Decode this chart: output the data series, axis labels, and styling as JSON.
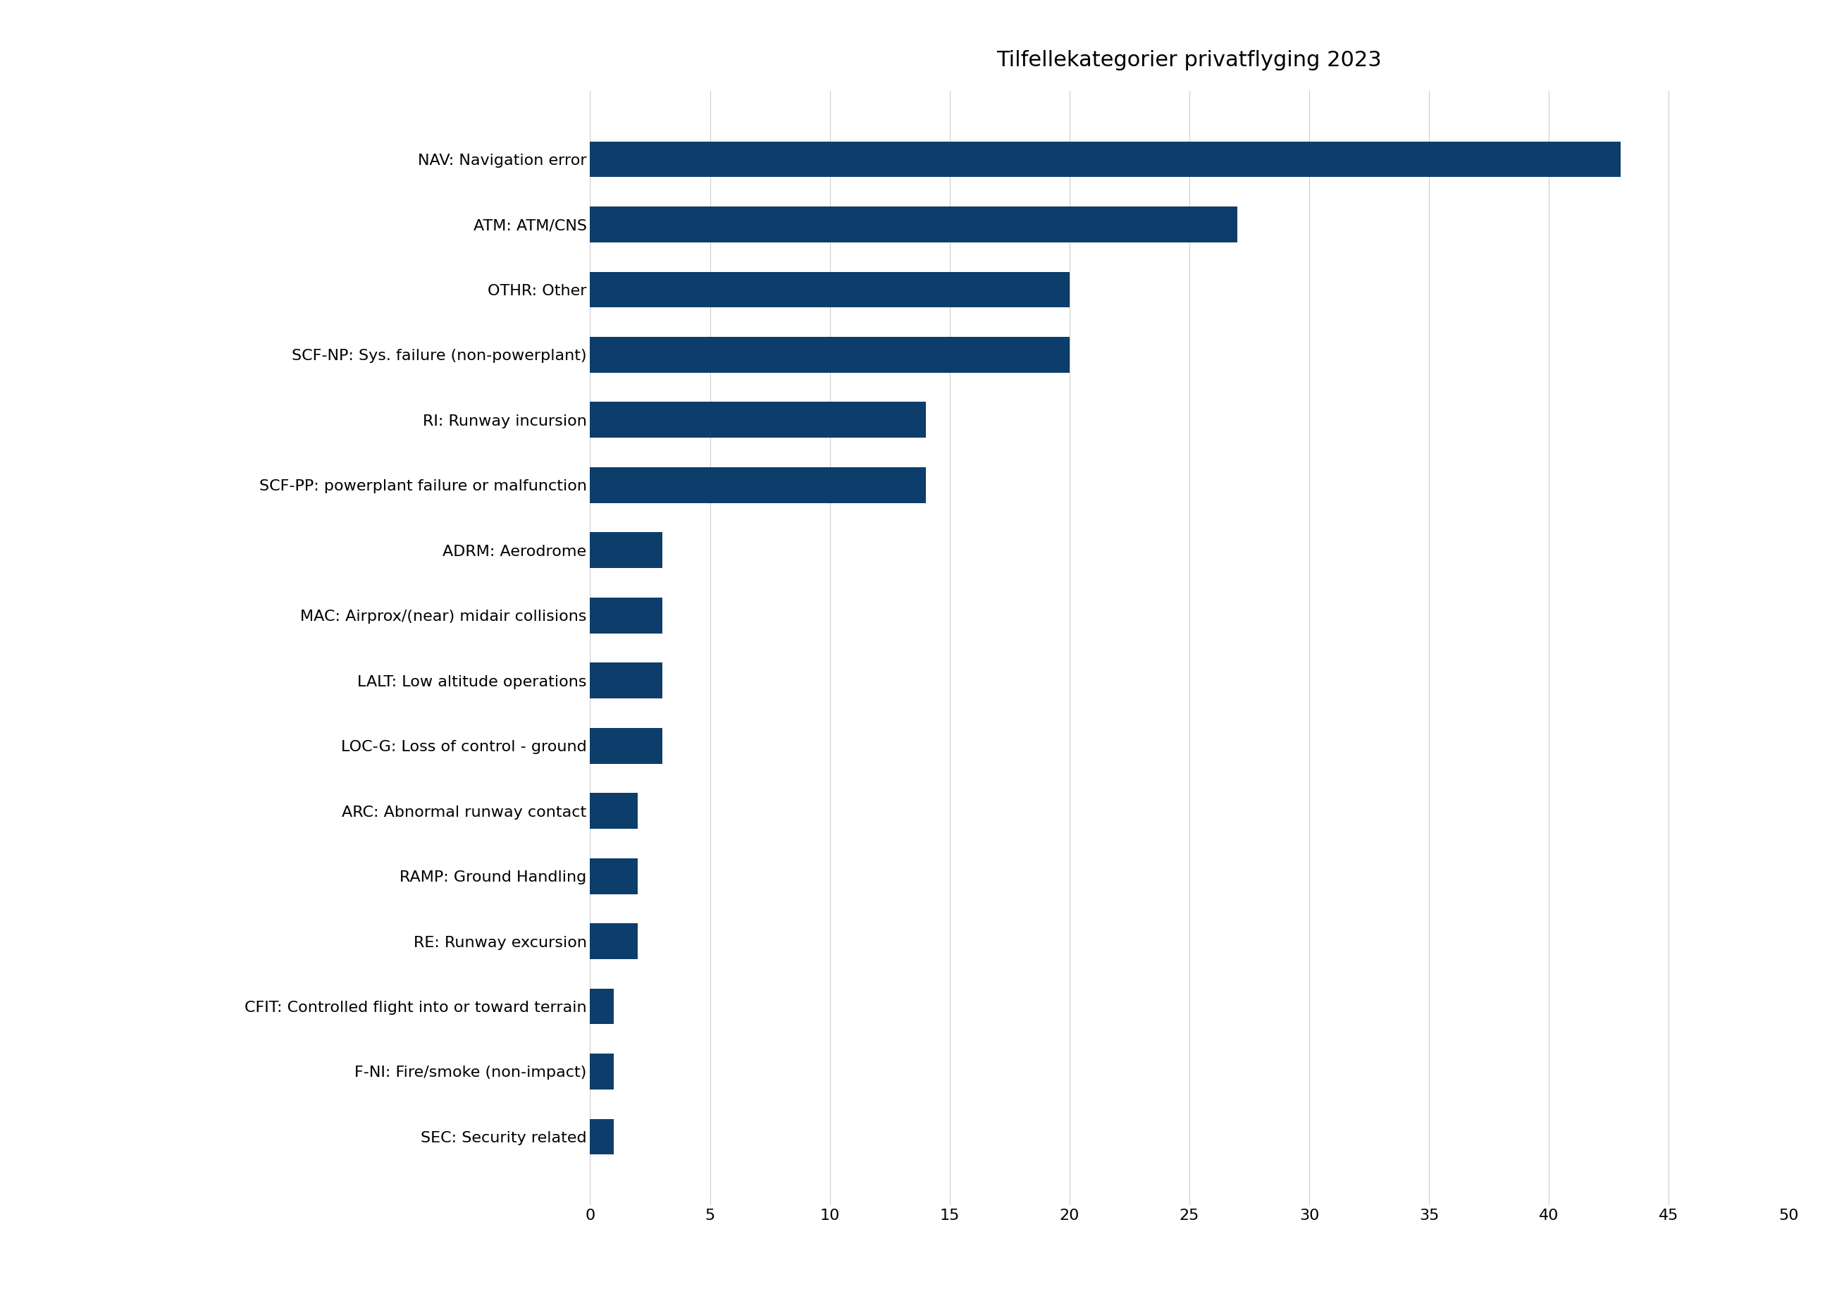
{
  "title": "Tilfellekategorier privatflyging 2023",
  "categories": [
    "NAV: Navigation error",
    "ATM: ATM/CNS",
    "OTHR: Other",
    "SCF-NP: Sys. failure (non-powerplant)",
    "RI: Runway incursion",
    "SCF-PP: powerplant failure or malfunction",
    "ADRM: Aerodrome",
    "MAC: Airprox/(near) midair collisions",
    "LALT: Low altitude operations",
    "LOC-G: Loss of control - ground",
    "ARC: Abnormal runway contact",
    "RAMP: Ground Handling",
    "RE: Runway excursion",
    "CFIT: Controlled flight into or toward terrain",
    "F-NI: Fire/smoke (non-impact)",
    "SEC: Security related"
  ],
  "values": [
    43,
    27,
    20,
    20,
    14,
    14,
    3,
    3,
    3,
    3,
    2,
    2,
    2,
    1,
    1,
    1
  ],
  "bar_color": "#0d3d6b",
  "background_color": "#ffffff",
  "xlim": [
    0,
    50
  ],
  "xticks": [
    0,
    5,
    10,
    15,
    20,
    25,
    30,
    35,
    40,
    45,
    50
  ],
  "title_fontsize": 22,
  "tick_fontsize": 16
}
